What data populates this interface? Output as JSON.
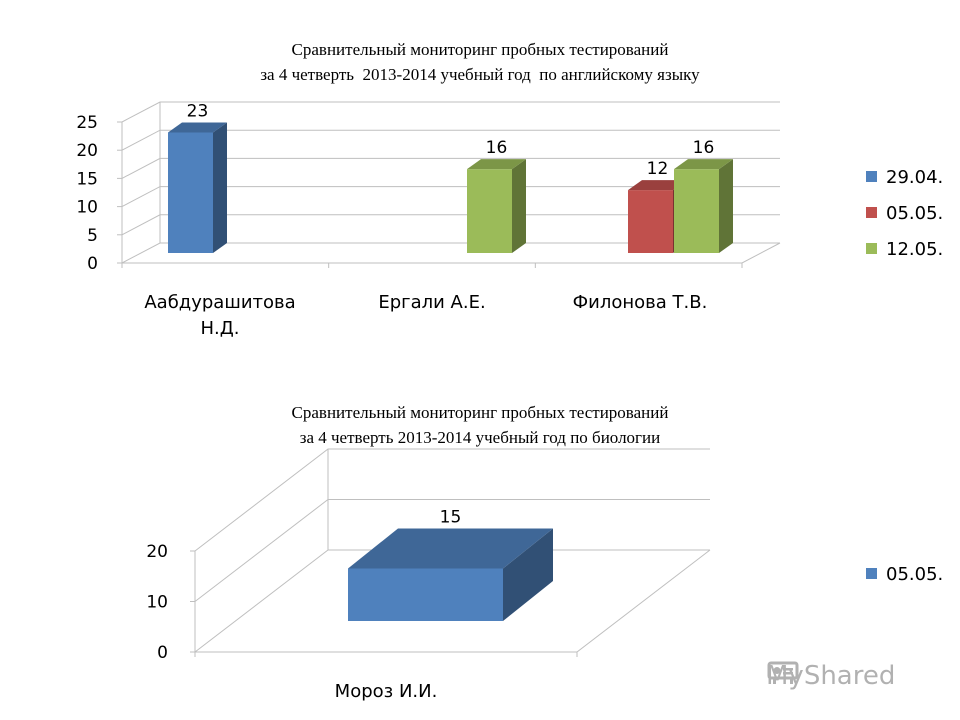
{
  "chart_data": [
    {
      "type": "bar",
      "title_lines": [
        "Сравнительный мониторинг пробных тестирований",
        "за 4 четверть  2013-2014 учебный год  по английскому языку"
      ],
      "categories": [
        [
          "Аабдурашитова",
          "Н.Д."
        ],
        [
          "Ергали А.Е."
        ],
        [
          "Филонова Т.В."
        ]
      ],
      "series": [
        {
          "name": "29.04.",
          "color": "#4F81BD",
          "values": [
            23,
            null,
            null
          ]
        },
        {
          "name": "05.05.",
          "color": "#C0504D",
          "values": [
            null,
            null,
            12
          ]
        },
        {
          "name": "12.05.",
          "color": "#9BBB59",
          "values": [
            null,
            16,
            16
          ]
        }
      ],
      "yticks": [
        0,
        5,
        10,
        15,
        20,
        25
      ],
      "ylim": [
        0,
        25
      ],
      "grid": true,
      "legend": "right",
      "projection": "3d"
    },
    {
      "type": "bar",
      "title_lines": [
        "Сравнительный мониторинг пробных тестирований",
        "за 4 четверть 2013-2014 учебный год по биологии"
      ],
      "categories": [
        [
          "Мороз И.И."
        ]
      ],
      "series": [
        {
          "name": "05.05.",
          "color": "#4F81BD",
          "values": [
            15
          ]
        }
      ],
      "yticks": [
        0,
        10,
        20
      ],
      "ylim": [
        0,
        20
      ],
      "grid": true,
      "legend": "right",
      "projection": "3d"
    }
  ],
  "watermark": {
    "text": "MyShared",
    "icon": "projector-icon"
  }
}
